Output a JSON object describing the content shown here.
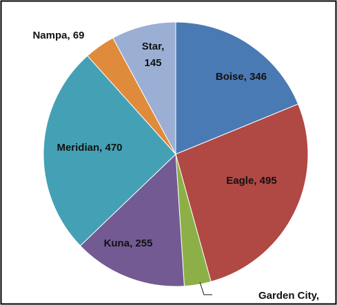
{
  "chart_data": {
    "type": "pie",
    "values": [
      346,
      495,
      60,
      255,
      470,
      69,
      145
    ],
    "value_labels": [
      "Boise, 346",
      "Eagle, 495",
      "Garden City,",
      "Kuna, 255",
      "Meridian, 470",
      "Nampa, 69",
      "Star, 145"
    ],
    "colors": [
      "#4a7ab4",
      "#b04844",
      "#8cb047",
      "#735a93",
      "#44a1b5",
      "#e08a3c",
      "#9bafd4"
    ]
  }
}
